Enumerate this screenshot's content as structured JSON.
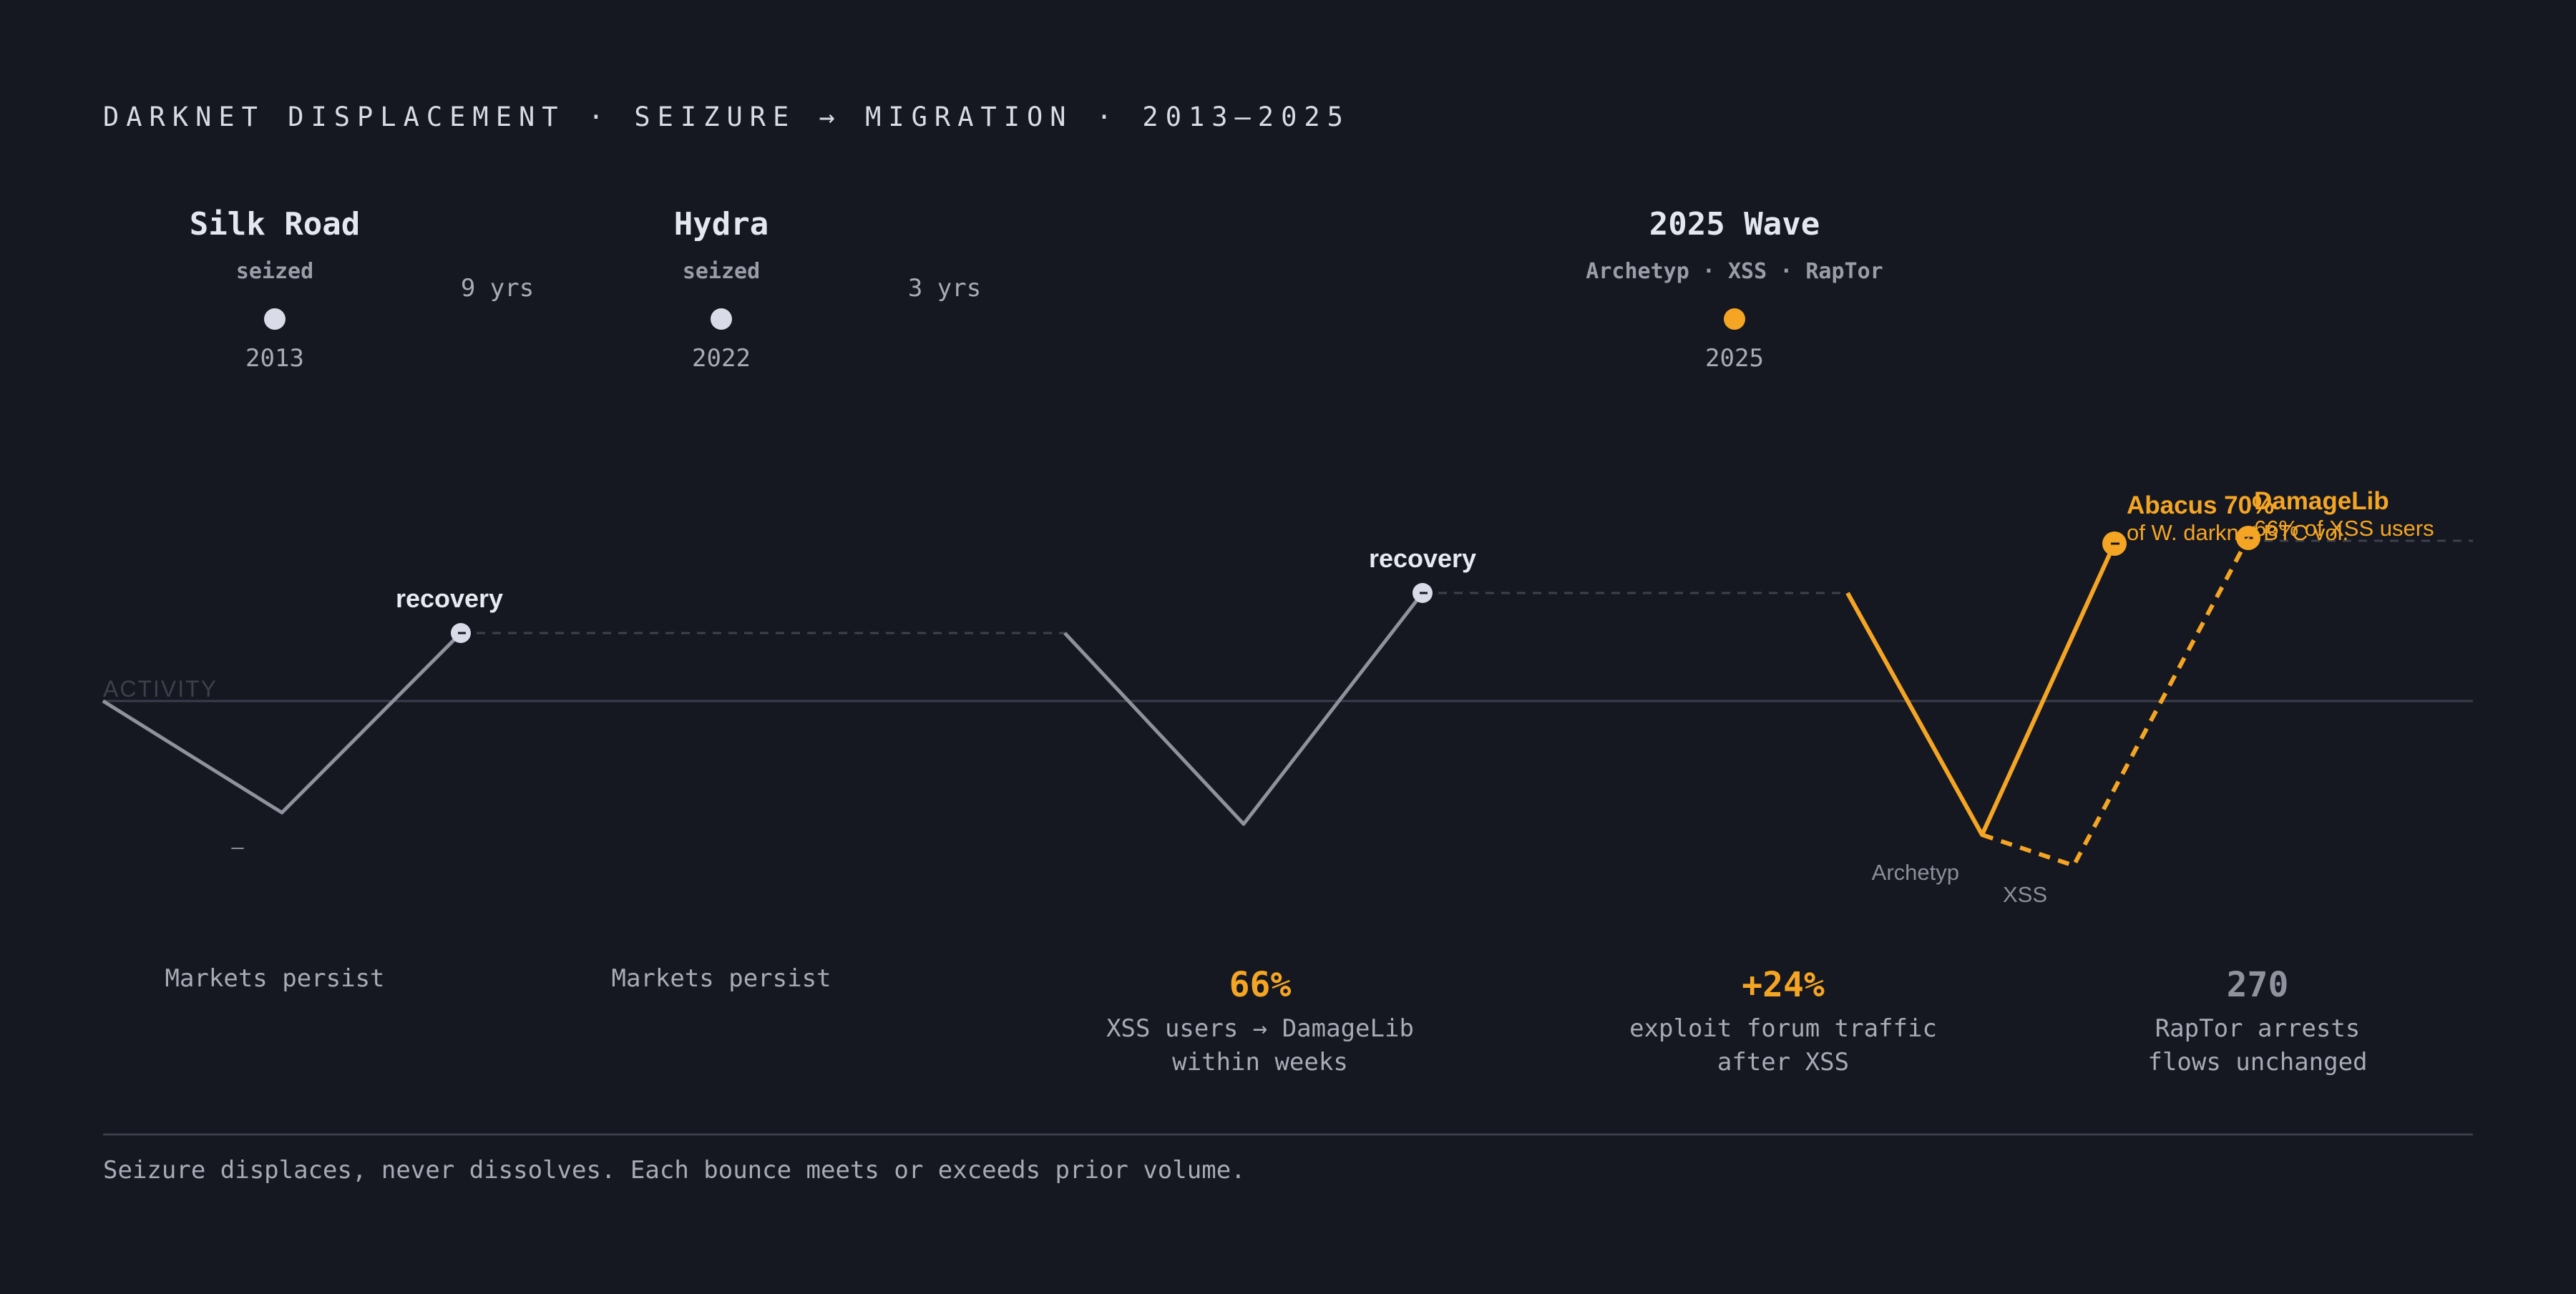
{
  "title": "DARKNET DISPLACEMENT · SEIZURE → MIGRATION · 2013–2025",
  "colors": {
    "background": "#151820",
    "accent": "#f5a524",
    "neutral_line": "#8f929c",
    "node": "#d9dbe8",
    "axis": "#3a3e4a"
  },
  "events": [
    {
      "name": "Silk Road",
      "sub": "seized",
      "year": "2013",
      "accent": false
    },
    {
      "name": "Hydra",
      "sub": "seized",
      "year": "2022",
      "accent": false
    },
    {
      "name": "2025 Wave",
      "sub": "Archetyp · XSS · RapTor",
      "year": "2025",
      "accent": true
    }
  ],
  "gaps": [
    "9 yrs",
    "3 yrs"
  ],
  "axis_label": "ACTIVITY",
  "trough_mark": "–",
  "recovery_labels": [
    "recovery",
    "recovery"
  ],
  "peaks": [
    {
      "name": "Abacus 70%",
      "sub": "of W. darknet BTC vol."
    },
    {
      "name": "DamageLib",
      "sub": "66% of XSS users"
    }
  ],
  "troughs": [
    "Archetyp",
    "XSS"
  ],
  "persist_labels": [
    "Markets persist",
    "Markets persist"
  ],
  "stats": [
    {
      "value": "66%",
      "lines": [
        "XSS users → DamageLib",
        "within weeks"
      ],
      "accent": true
    },
    {
      "value": "+24%",
      "lines": [
        "exploit forum traffic",
        "after XSS"
      ],
      "accent": true
    },
    {
      "value": "270",
      "lines": [
        "RapTor arrests",
        "flows unchanged"
      ],
      "accent": false
    }
  ],
  "footer": "Seizure displaces, never dissolves. Each bounce meets or exceeds prior volume."
}
